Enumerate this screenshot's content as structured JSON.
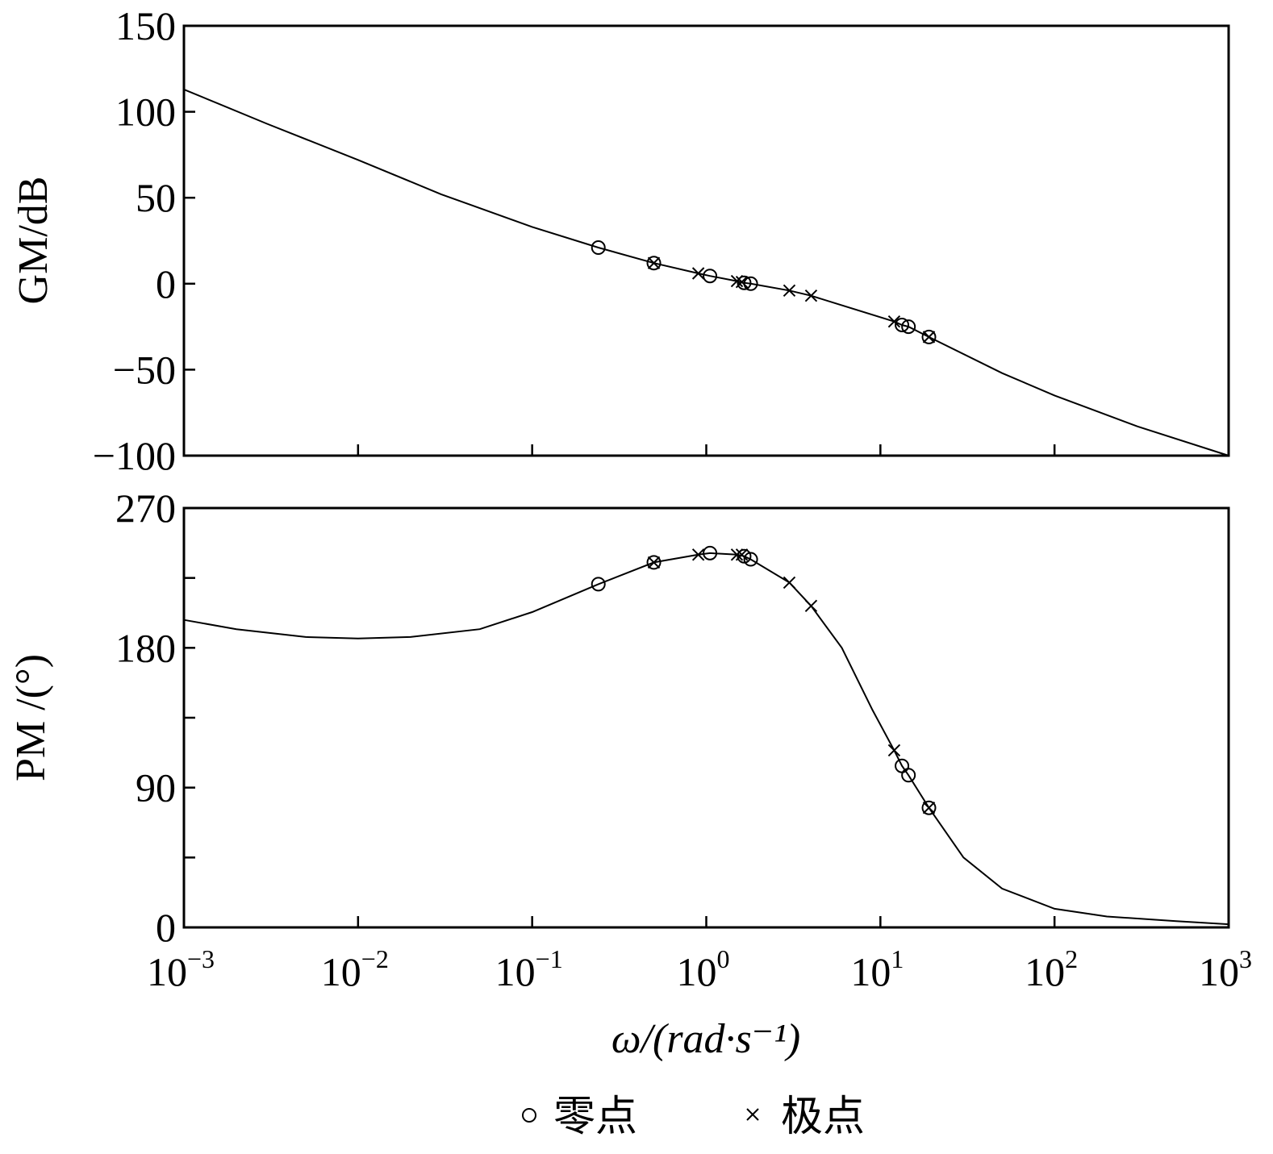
{
  "chart_data": [
    {
      "type": "line",
      "xscale": "log",
      "xlim": [
        0.001,
        1000
      ],
      "ylim": [
        -100,
        150
      ],
      "ylabel": "GM/dB",
      "yticks": [
        "150",
        "100",
        "50",
        "0",
        "−50",
        "−100"
      ],
      "ytick_values": [
        150,
        100,
        50,
        0,
        -50,
        -100
      ],
      "series": [
        {
          "x": [
            0.001,
            0.003,
            0.01,
            0.03,
            0.1,
            0.24,
            0.5,
            0.9,
            1.05,
            1.5,
            1.65,
            1.8,
            3.0,
            4.0,
            12.0,
            13.3,
            14.5,
            19.0,
            50,
            100,
            300,
            1000
          ],
          "values": [
            113,
            93,
            72,
            52,
            33,
            21,
            12,
            6,
            4.5,
            1.5,
            0.5,
            0,
            -4,
            -7,
            -22,
            -24,
            -25,
            -31,
            -52,
            -65,
            -83,
            -100
          ]
        }
      ],
      "zeros": {
        "x": [
          0.24,
          0.5,
          1.05,
          1.65,
          1.8,
          13.3,
          14.5,
          19.0
        ],
        "y": [
          21,
          12,
          4.5,
          0.5,
          0,
          -24,
          -25,
          -31
        ]
      },
      "poles": {
        "x": [
          0.5,
          0.9,
          1.5,
          1.6,
          3.0,
          4.0,
          12.0,
          19.0
        ],
        "y": [
          12,
          6,
          1.5,
          1,
          -4,
          -7,
          -22,
          -31
        ]
      }
    },
    {
      "type": "line",
      "xscale": "log",
      "xlim": [
        0.001,
        1000
      ],
      "ylim": [
        0,
        270
      ],
      "ylabel": "PM /(°)",
      "yticks": [
        "270",
        "",
        "180",
        "",
        "90",
        "",
        "0"
      ],
      "ytick_values": [
        270,
        225,
        180,
        135,
        90,
        45,
        0
      ],
      "xlabel": "ω/(rad·s⁻¹)",
      "xticks": [
        {
          "base": "10",
          "exp": "−3"
        },
        {
          "base": "10",
          "exp": "−2"
        },
        {
          "base": "10",
          "exp": "−1"
        },
        {
          "base": "10",
          "exp": "0"
        },
        {
          "base": "10",
          "exp": "1"
        },
        {
          "base": "10",
          "exp": "2"
        },
        {
          "base": "10",
          "exp": "3"
        }
      ],
      "series": [
        {
          "x": [
            0.001,
            0.002,
            0.005,
            0.01,
            0.02,
            0.05,
            0.1,
            0.24,
            0.5,
            0.9,
            1.05,
            1.5,
            1.65,
            1.8,
            3.0,
            4.0,
            6.0,
            9.0,
            12.0,
            13.3,
            14.5,
            19.0,
            30,
            50,
            100,
            200,
            500,
            1000
          ],
          "values": [
            198,
            192,
            187,
            186,
            187,
            192,
            203,
            221,
            235,
            240,
            241,
            240,
            239,
            237,
            222,
            207,
            180,
            140,
            114,
            104,
            98,
            77,
            45,
            25,
            12,
            7,
            4,
            2
          ]
        }
      ],
      "zeros": {
        "x": [
          0.24,
          0.5,
          1.05,
          1.65,
          1.8,
          13.3,
          14.5,
          19.0
        ],
        "y": [
          221,
          235,
          241,
          239,
          237,
          104,
          98,
          77
        ]
      },
      "poles": {
        "x": [
          0.5,
          0.9,
          1.5,
          1.6,
          3.0,
          4.0,
          12.0,
          19.0
        ],
        "y": [
          235,
          240,
          240,
          240,
          222,
          207,
          114,
          77
        ]
      }
    }
  ],
  "legend": {
    "zero_symbol": "○",
    "zero_label": "零点",
    "pole_symbol": "×",
    "pole_label": "极点"
  }
}
